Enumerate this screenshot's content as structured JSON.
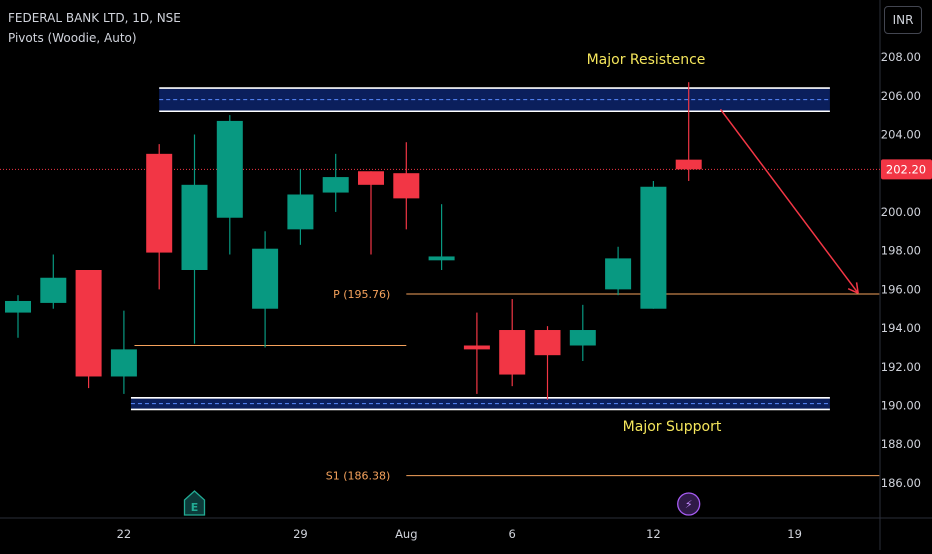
{
  "header": {
    "title": "FEDERAL BANK LTD, 1D, NSE",
    "indicator": "Pivots (Woodie, Auto)",
    "currency": "INR"
  },
  "chart_data": {
    "type": "candlestick",
    "y_ticks": [
      "208.00",
      "206.00",
      "204.00",
      "202.00",
      "200.00",
      "198.00",
      "196.00",
      "194.00",
      "192.00",
      "190.00",
      "188.00",
      "186.00"
    ],
    "ylim": [
      184.5,
      209.5
    ],
    "x_ticks": [
      {
        "label": "22",
        "index": 3
      },
      {
        "label": "29",
        "index": 8
      },
      {
        "label": "Aug",
        "index": 11
      },
      {
        "label": "6",
        "index": 14
      },
      {
        "label": "12",
        "index": 18
      },
      {
        "label": "19",
        "index": 22
      }
    ],
    "candles": [
      {
        "o": 194.8,
        "h": 195.7,
        "l": 193.5,
        "c": 195.4
      },
      {
        "o": 195.3,
        "h": 197.8,
        "l": 195.0,
        "c": 196.6
      },
      {
        "o": 197.0,
        "h": 197.0,
        "l": 190.9,
        "c": 191.5
      },
      {
        "o": 191.5,
        "h": 194.9,
        "l": 190.6,
        "c": 192.9
      },
      {
        "o": 203.0,
        "h": 203.5,
        "l": 196.0,
        "c": 197.9
      },
      {
        "o": 197.0,
        "h": 204.0,
        "l": 193.2,
        "c": 201.4
      },
      {
        "o": 199.7,
        "h": 205.0,
        "l": 197.8,
        "c": 204.7
      },
      {
        "o": 195.0,
        "h": 199.0,
        "l": 193.0,
        "c": 198.1
      },
      {
        "o": 199.1,
        "h": 202.2,
        "l": 198.3,
        "c": 200.9
      },
      {
        "o": 201.0,
        "h": 203.0,
        "l": 200.0,
        "c": 201.8
      },
      {
        "o": 202.1,
        "h": 202.1,
        "l": 197.8,
        "c": 201.4
      },
      {
        "o": 202.0,
        "h": 203.6,
        "l": 199.1,
        "c": 200.7
      },
      {
        "o": 197.5,
        "h": 200.4,
        "l": 197.0,
        "c": 197.7
      },
      {
        "o": 193.1,
        "h": 194.8,
        "l": 190.6,
        "c": 192.9
      },
      {
        "o": 193.9,
        "h": 195.5,
        "l": 191.0,
        "c": 191.6
      },
      {
        "o": 193.9,
        "h": 194.1,
        "l": 190.3,
        "c": 192.6
      },
      {
        "o": 193.1,
        "h": 195.2,
        "l": 192.3,
        "c": 193.9
      },
      {
        "o": 196.0,
        "h": 198.2,
        "l": 195.7,
        "c": 197.6
      },
      {
        "o": 195.0,
        "h": 201.6,
        "l": 195.0,
        "c": 201.3
      },
      {
        "o": 202.7,
        "h": 206.7,
        "l": 201.6,
        "c": 202.2
      }
    ],
    "current_price": {
      "value": 202.2,
      "label": "202.20"
    },
    "pivots": [
      {
        "label": "P (195.76)",
        "value": 195.76,
        "from_index": 11,
        "to_index": 24.4
      },
      {
        "label": "S1 (186.38)",
        "value": 186.38,
        "from_index": 11,
        "to_index": 24.4
      }
    ],
    "extra_lines": [
      {
        "value": 193.1,
        "from_index": 3.3,
        "to_index": 11
      }
    ],
    "zones": [
      {
        "name": "Major Resistence",
        "low": 205.2,
        "high": 206.4,
        "mid": 205.8,
        "from_index": 4,
        "to_index": 23
      },
      {
        "name": "Major Support",
        "low": 189.8,
        "high": 190.4,
        "mid": 190.1,
        "from_index": 3.2,
        "to_index": 23
      }
    ],
    "arrow": {
      "from": {
        "index": 19.9,
        "value": 205.3
      },
      "to": {
        "index": 23.8,
        "value": 195.8
      }
    },
    "events": [
      {
        "icon": "earnings-icon",
        "glyph": "E",
        "index": 5
      },
      {
        "icon": "dividend-icon",
        "glyph": "⚡",
        "index": 19
      }
    ],
    "colors": {
      "up": "#089981",
      "down": "#f23645",
      "axis_text": "#d1d4dc",
      "pivot": "#f5a25c",
      "annotation": "#f5e65c",
      "zone": "#0b1f5c",
      "arrow": "#f23645"
    }
  }
}
